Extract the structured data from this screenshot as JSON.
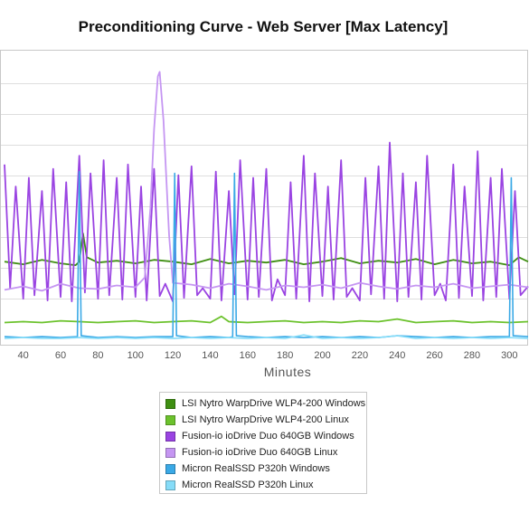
{
  "chart_data": {
    "type": "line",
    "title": "Preconditioning Curve - Web Server [Max Latency]",
    "xlabel": "Minutes",
    "ylabel": "",
    "xlim": [
      30,
      310
    ],
    "ylim": [
      0,
      330
    ],
    "x_ticks": [
      40,
      60,
      80,
      100,
      120,
      140,
      160,
      180,
      200,
      220,
      240,
      260,
      280,
      300
    ],
    "grid": true,
    "legend": "bottom",
    "series": [
      {
        "name": "LSI Nytro WarpDrive WLP4-200 Windows",
        "color": "#3f8f12",
        "x": [
          30,
          40,
          50,
          60,
          68,
          70,
          72,
          74,
          80,
          90,
          100,
          110,
          120,
          130,
          140,
          150,
          160,
          170,
          180,
          190,
          200,
          210,
          220,
          230,
          240,
          250,
          260,
          270,
          280,
          290,
          300,
          305,
          310
        ],
        "y": [
          90,
          87,
          92,
          88,
          86,
          90,
          122,
          95,
          89,
          91,
          88,
          92,
          90,
          87,
          93,
          88,
          91,
          89,
          92,
          87,
          90,
          94,
          88,
          91,
          89,
          93,
          87,
          92,
          88,
          90,
          86,
          95,
          90
        ]
      },
      {
        "name": "LSI Nytro WarpDrive WLP4-200 Linux",
        "color": "#6cc22d",
        "x": [
          30,
          40,
          50,
          60,
          70,
          80,
          90,
          100,
          110,
          120,
          130,
          140,
          146,
          150,
          160,
          170,
          180,
          190,
          200,
          210,
          220,
          230,
          240,
          250,
          260,
          270,
          280,
          290,
          300,
          310
        ],
        "y": [
          21,
          22,
          21,
          23,
          22,
          21,
          22,
          23,
          21,
          22,
          23,
          21,
          28,
          22,
          21,
          22,
          23,
          21,
          22,
          21,
          23,
          22,
          25,
          21,
          22,
          23,
          21,
          22,
          21,
          22
        ]
      },
      {
        "name": "Fusion-io ioDrive Duo 640GB Windows",
        "color": "#9a44e2",
        "x": [
          30,
          33,
          36,
          40,
          43,
          46,
          50,
          53,
          56,
          60,
          63,
          66,
          70,
          73,
          76,
          80,
          83,
          86,
          90,
          93,
          96,
          100,
          103,
          106,
          110,
          113,
          116,
          120,
          123,
          126,
          130,
          133,
          136,
          140,
          143,
          146,
          150,
          153,
          156,
          160,
          163,
          166,
          170,
          173,
          176,
          180,
          183,
          186,
          190,
          193,
          196,
          200,
          203,
          206,
          210,
          213,
          216,
          220,
          223,
          226,
          230,
          233,
          236,
          240,
          243,
          246,
          250,
          253,
          256,
          260,
          263,
          266,
          270,
          273,
          276,
          280,
          283,
          286,
          290,
          293,
          296,
          300,
          303,
          306,
          310
        ],
        "y": [
          200,
          60,
          175,
          48,
          185,
          52,
          170,
          46,
          195,
          50,
          180,
          45,
          210,
          55,
          190,
          48,
          205,
          52,
          185,
          47,
          200,
          50,
          175,
          46,
          195,
          51,
          65,
          45,
          188,
          49,
          198,
          52,
          60,
          48,
          192,
          46,
          170,
          53,
          205,
          47,
          185,
          50,
          195,
          46,
          70,
          52,
          180,
          48,
          210,
          45,
          190,
          51,
          175,
          47,
          205,
          50,
          60,
          46,
          185,
          53,
          198,
          48,
          225,
          45,
          190,
          50,
          180,
          47,
          210,
          52,
          65,
          46,
          200,
          49,
          175,
          51,
          215,
          46,
          185,
          50,
          195,
          48,
          170,
          52,
          62
        ]
      },
      {
        "name": "Fusion-io ioDrive Duo 640GB Linux",
        "color": "#c596f2",
        "x": [
          30,
          40,
          50,
          60,
          70,
          80,
          90,
          100,
          105,
          108,
          110,
          112,
          113,
          115,
          118,
          120,
          130,
          140,
          150,
          160,
          170,
          180,
          190,
          200,
          210,
          220,
          230,
          240,
          250,
          260,
          270,
          280,
          290,
          300,
          310
        ],
        "y": [
          58,
          62,
          57,
          65,
          60,
          59,
          63,
          61,
          72,
          150,
          240,
          300,
          305,
          250,
          120,
          66,
          64,
          60,
          65,
          62,
          58,
          63,
          61,
          64,
          60,
          66,
          62,
          59,
          63,
          61,
          65,
          60,
          62,
          64,
          61
        ]
      },
      {
        "name": "Micron RealSSD P320h Windows",
        "color": "#3aa9e6",
        "x": [
          30,
          40,
          50,
          60,
          69,
          70,
          71,
          80,
          90,
          100,
          110,
          120,
          121,
          122,
          130,
          140,
          150,
          152,
          153,
          154,
          160,
          170,
          180,
          190,
          200,
          210,
          220,
          230,
          240,
          250,
          260,
          270,
          280,
          290,
          300,
          301,
          302,
          310
        ],
        "y": [
          5,
          4,
          5,
          4,
          5,
          192,
          6,
          4,
          5,
          4,
          5,
          5,
          190,
          6,
          4,
          5,
          4,
          5,
          190,
          6,
          5,
          4,
          5,
          4,
          5,
          4,
          5,
          4,
          6,
          5,
          4,
          5,
          4,
          5,
          5,
          185,
          6,
          5
        ]
      },
      {
        "name": "Micron RealSSD P320h Linux",
        "color": "#86dcf8",
        "x": [
          30,
          40,
          50,
          60,
          70,
          80,
          90,
          100,
          110,
          120,
          130,
          140,
          150,
          160,
          170,
          180,
          190,
          200,
          210,
          220,
          230,
          240,
          250,
          260,
          270,
          280,
          290,
          300,
          310
        ],
        "y": [
          3,
          4,
          3,
          3,
          4,
          3,
          4,
          3,
          4,
          3,
          4,
          3,
          4,
          3,
          4,
          3,
          7,
          3,
          4,
          3,
          4,
          6,
          3,
          4,
          3,
          4,
          3,
          4,
          3
        ]
      }
    ]
  }
}
